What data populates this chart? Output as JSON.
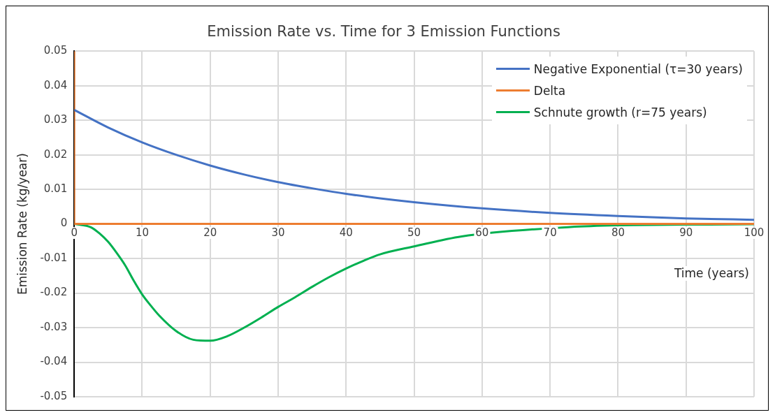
{
  "chart_data": {
    "type": "line",
    "title": "Emission Rate vs. Time for 3 Emission Functions",
    "xlabel": "Time (years)",
    "ylabel": "Emission Rate (kg/year)",
    "xlim": [
      0,
      100
    ],
    "xticks": [
      0,
      10,
      20,
      30,
      40,
      50,
      60,
      70,
      80,
      90,
      100
    ],
    "ylim": [
      -0.05,
      0.05
    ],
    "yticks": [
      -0.05,
      -0.04,
      -0.03,
      -0.02,
      -0.01,
      0,
      0.01,
      0.02,
      0.03,
      0.04,
      0.05
    ],
    "grid": true,
    "legend": "top right",
    "marker": "none",
    "line_style": "solid",
    "series": [
      {
        "name": "Negative Exponential (τ=30 years)",
        "color": "#4472c4",
        "x": [
          0,
          5,
          10,
          15,
          20,
          25,
          30,
          35,
          40,
          45,
          50,
          60,
          70,
          80,
          90,
          100
        ],
        "values": [
          0.033,
          0.0279,
          0.0236,
          0.02,
          0.0169,
          0.0143,
          0.0121,
          0.0103,
          0.0087,
          0.0074,
          0.0063,
          0.0045,
          0.0032,
          0.0023,
          0.0016,
          0.0012
        ]
      },
      {
        "name": "Delta",
        "color": "#ed7d31",
        "x": [
          0,
          0,
          100
        ],
        "values": [
          0.05,
          0,
          0
        ]
      },
      {
        "name": "Schnute growth (r=75 years)",
        "color": "#00b050",
        "x": [
          0,
          2.5,
          3.75,
          5,
          6.25,
          7.5,
          8.75,
          10,
          11.25,
          12.5,
          15,
          17.5,
          20,
          22.5,
          25,
          27.5,
          30,
          32.5,
          35,
          37.5,
          40,
          42.5,
          45,
          50,
          57,
          73,
          80,
          90,
          100
        ],
        "values": [
          0,
          -0.001,
          -0.0028,
          -0.0052,
          -0.0084,
          -0.012,
          -0.0164,
          -0.0204,
          -0.0236,
          -0.0265,
          -0.031,
          -0.0335,
          -0.0338,
          -0.0325,
          -0.03,
          -0.0271,
          -0.024,
          -0.0212,
          -0.0182,
          -0.0154,
          -0.0129,
          -0.0107,
          -0.0088,
          -0.0065,
          -0.0036,
          -0.0009,
          -0.0004,
          -0.0002,
          -0.0001
        ]
      }
    ]
  }
}
